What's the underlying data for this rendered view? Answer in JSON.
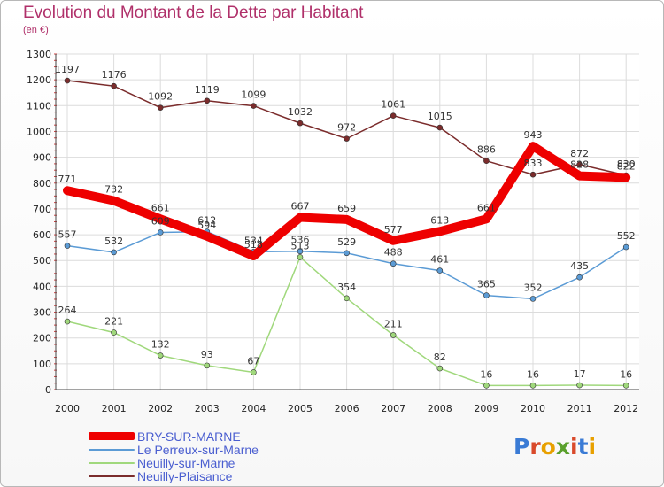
{
  "header": {
    "title": "Evolution du Montant de la Dette par Habitant",
    "subtitle": "(en €)"
  },
  "brand": {
    "letters": [
      "P",
      "r",
      "o",
      "x",
      "i",
      "t",
      "i"
    ],
    "colors": [
      "#3a7bd5",
      "#d94a2b",
      "#e8a000",
      "#5aa02c",
      "#d94a2b",
      "#3a7bd5",
      "#e8a000"
    ]
  },
  "chart_data": {
    "type": "line",
    "title": "Evolution du Montant de la Dette par Habitant",
    "ylabel": "(en €)",
    "xlabel": "",
    "ylim": [
      0,
      1300
    ],
    "yticks": [
      0,
      100,
      200,
      300,
      400,
      500,
      600,
      700,
      800,
      900,
      1000,
      1100,
      1200,
      1300
    ],
    "categories": [
      "2000",
      "2001",
      "2002",
      "2003",
      "2004",
      "2005",
      "2006",
      "2007",
      "2008",
      "2009",
      "2010",
      "2011",
      "2012"
    ],
    "grid": true,
    "legend_position": "bottom-left",
    "series": [
      {
        "name": "BRY-SUR-MARNE",
        "color": "#ee0000",
        "label_color": "#4a5ed0",
        "values": [
          771,
          732,
          661,
          594,
          518,
          667,
          659,
          577,
          613,
          661,
          943,
          828,
          822
        ],
        "labels": [
          "771",
          "732",
          "661",
          "594",
          "518",
          "667",
          "659",
          "577",
          "613",
          "661",
          "943",
          "828",
          "822"
        ]
      },
      {
        "name": "Le Perreux-sur-Marne",
        "color": "#5b9bd5",
        "label_color": "#4a5ed0",
        "values": [
          557,
          532,
          609,
          612,
          534,
          536,
          529,
          488,
          461,
          365,
          352,
          435,
          552
        ],
        "labels": [
          "557",
          "532",
          "609",
          "612",
          "534",
          "536",
          "529",
          "488",
          "461",
          "365",
          "352",
          "435",
          "552"
        ]
      },
      {
        "name": "Neuilly-sur-Marne",
        "color": "#a0d87c",
        "label_color": "#4a5ed0",
        "values": [
          264,
          221,
          132,
          93,
          67,
          513,
          354,
          211,
          82,
          16,
          16,
          17,
          16
        ],
        "labels": [
          "264",
          "221",
          "132",
          "93",
          "67",
          "513",
          "354",
          "211",
          "82",
          "16",
          "16",
          "17",
          "16"
        ]
      },
      {
        "name": "Neuilly-Plaisance",
        "color": "#7b2c2c",
        "label_color": "#4a5ed0",
        "values": [
          1197,
          1176,
          1092,
          1119,
          1099,
          1032,
          972,
          1061,
          1015,
          886,
          833,
          872,
          830
        ],
        "labels": [
          "1197",
          "1176",
          "1092",
          "1119",
          "1099",
          "1032",
          "972",
          "1061",
          "1015",
          "886",
          "833",
          "872",
          "830"
        ]
      }
    ]
  }
}
